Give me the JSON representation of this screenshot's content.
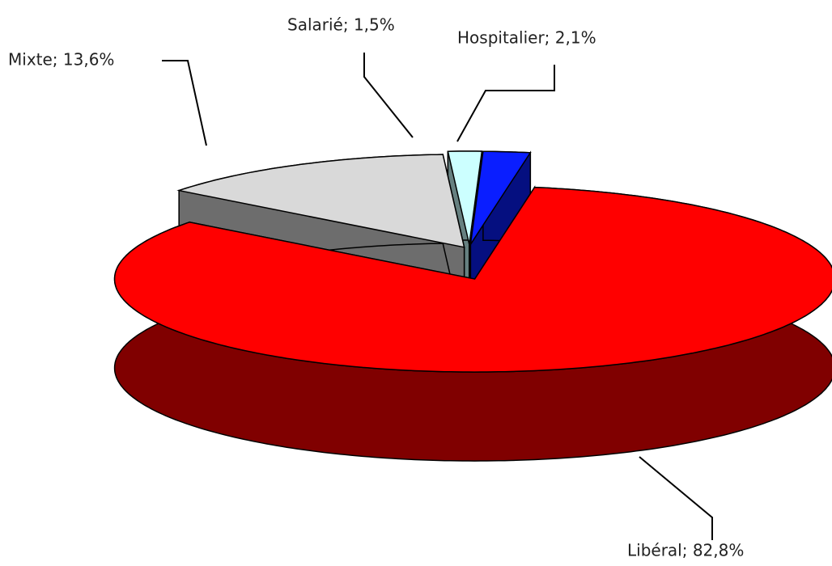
{
  "chart_data": {
    "type": "pie3d",
    "values": [
      2.1,
      82.8,
      13.6,
      1.5
    ],
    "value_labels": [
      "Hospitalier; 2,1%",
      "Libéral; 82,8%",
      "Mixte; 13,6%",
      "Salarié; 1,5%"
    ],
    "colors": [
      "#0a1eff",
      "#ff0000",
      "#d9d9d9",
      "#ccffff"
    ]
  }
}
